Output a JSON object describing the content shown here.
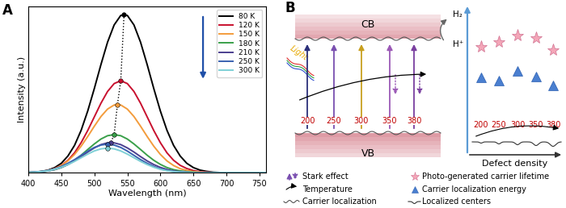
{
  "chart_data": {
    "type": "line",
    "panel_label": "A",
    "xlabel": "Wavelength (nm)",
    "ylabel": "Intensity (a.u.)",
    "x": [
      400,
      410,
      420,
      430,
      440,
      450,
      460,
      470,
      480,
      490,
      500,
      510,
      520,
      530,
      540,
      550,
      560,
      570,
      580,
      590,
      600,
      610,
      620,
      630,
      640,
      650,
      660,
      670,
      680,
      690,
      700,
      710,
      720,
      730,
      740,
      750,
      760
    ],
    "series": [
      {
        "name": "80 K",
        "color": "#000000",
        "peak": {
          "x": 545,
          "y": 1.0
        },
        "values": [
          0.001,
          0.003,
          0.008,
          0.016,
          0.032,
          0.059,
          0.105,
          0.172,
          0.267,
          0.389,
          0.531,
          0.682,
          0.823,
          0.932,
          0.992,
          0.992,
          0.932,
          0.823,
          0.682,
          0.531,
          0.389,
          0.267,
          0.172,
          0.105,
          0.059,
          0.032,
          0.016,
          0.008,
          0.003,
          0.001,
          0,
          0,
          0,
          0,
          0,
          0,
          0
        ]
      },
      {
        "name": "120 K",
        "color": "#c8102e",
        "peak": {
          "x": 540,
          "y": 0.58
        },
        "values": [
          0.001,
          0.003,
          0.006,
          0.013,
          0.026,
          0.046,
          0.078,
          0.125,
          0.189,
          0.266,
          0.352,
          0.438,
          0.512,
          0.562,
          0.58,
          0.562,
          0.512,
          0.438,
          0.352,
          0.266,
          0.189,
          0.125,
          0.078,
          0.046,
          0.026,
          0.013,
          0.006,
          0.003,
          0.001,
          0,
          0,
          0,
          0,
          0,
          0,
          0,
          0
        ]
      },
      {
        "name": "150 K",
        "color": "#f39c3c",
        "peak": {
          "x": 535,
          "y": 0.43
        },
        "values": [
          0.001,
          0.003,
          0.007,
          0.014,
          0.025,
          0.045,
          0.074,
          0.115,
          0.167,
          0.228,
          0.293,
          0.354,
          0.401,
          0.427,
          0.427,
          0.401,
          0.354,
          0.293,
          0.228,
          0.167,
          0.115,
          0.074,
          0.045,
          0.025,
          0.014,
          0.007,
          0.003,
          0.001,
          0,
          0,
          0,
          0,
          0,
          0,
          0,
          0,
          0
        ]
      },
      {
        "name": "180 K",
        "color": "#3aa04a",
        "peak": {
          "x": 530,
          "y": 0.24
        },
        "values": [
          0.001,
          0.003,
          0.006,
          0.011,
          0.019,
          0.032,
          0.052,
          0.078,
          0.11,
          0.146,
          0.181,
          0.212,
          0.233,
          0.24,
          0.233,
          0.212,
          0.181,
          0.146,
          0.11,
          0.078,
          0.052,
          0.032,
          0.019,
          0.011,
          0.006,
          0.003,
          0.001,
          0,
          0,
          0,
          0,
          0,
          0,
          0,
          0,
          0,
          0
        ]
      },
      {
        "name": "210 K",
        "color": "#4b3f8f",
        "peak": {
          "x": 525,
          "y": 0.19
        },
        "values": [
          0.001,
          0.003,
          0.006,
          0.011,
          0.02,
          0.033,
          0.051,
          0.074,
          0.101,
          0.13,
          0.156,
          0.177,
          0.188,
          0.188,
          0.177,
          0.156,
          0.13,
          0.101,
          0.074,
          0.051,
          0.033,
          0.02,
          0.011,
          0.006,
          0.003,
          0.001,
          0,
          0,
          0,
          0,
          0,
          0,
          0,
          0,
          0,
          0,
          0
        ]
      },
      {
        "name": "250 K",
        "color": "#3a62b0",
        "peak": {
          "x": 520,
          "y": 0.18
        },
        "values": [
          0.002,
          0.004,
          0.008,
          0.014,
          0.024,
          0.039,
          0.059,
          0.082,
          0.109,
          0.136,
          0.159,
          0.174,
          0.18,
          0.174,
          0.159,
          0.136,
          0.109,
          0.082,
          0.059,
          0.039,
          0.024,
          0.014,
          0.008,
          0.004,
          0.002,
          0,
          0,
          0,
          0,
          0,
          0,
          0,
          0,
          0,
          0,
          0,
          0
        ]
      },
      {
        "name": "300 K",
        "color": "#7fd0d6",
        "peak": {
          "x": 520,
          "y": 0.155
        },
        "values": [
          0.002,
          0.003,
          0.007,
          0.012,
          0.021,
          0.034,
          0.051,
          0.071,
          0.094,
          0.117,
          0.137,
          0.15,
          0.155,
          0.15,
          0.137,
          0.117,
          0.094,
          0.071,
          0.051,
          0.034,
          0.021,
          0.012,
          0.007,
          0.003,
          0.002,
          0,
          0,
          0,
          0,
          0,
          0,
          0,
          0,
          0,
          0,
          0,
          0
        ]
      }
    ],
    "xlim": [
      400,
      760
    ],
    "ylim": [
      0,
      1.05
    ],
    "xticks": [
      400,
      450,
      500,
      550,
      600,
      650,
      700,
      750
    ],
    "tick_labels": "x",
    "legend": "upper right"
  },
  "diagram": {
    "panel_label": "B",
    "bands": {
      "conduction": "CB",
      "valence": "VB"
    },
    "reaction": {
      "product": "H₂",
      "reactant": "H⁺"
    },
    "light": "Light",
    "samples": [
      "200",
      "250",
      "300",
      "350",
      "380"
    ],
    "legend": {
      "stark": "Stark effect",
      "temperature": "Temperature",
      "localization": "Carrier localization",
      "lifetime": "Photo-generated carrier lifetime",
      "energy": "Carrier localization energy",
      "centers": "Localized centers"
    },
    "defect_axis": {
      "label": "Defect density",
      "samples": [
        "200",
        "250",
        "300",
        "350",
        "380"
      ]
    }
  }
}
